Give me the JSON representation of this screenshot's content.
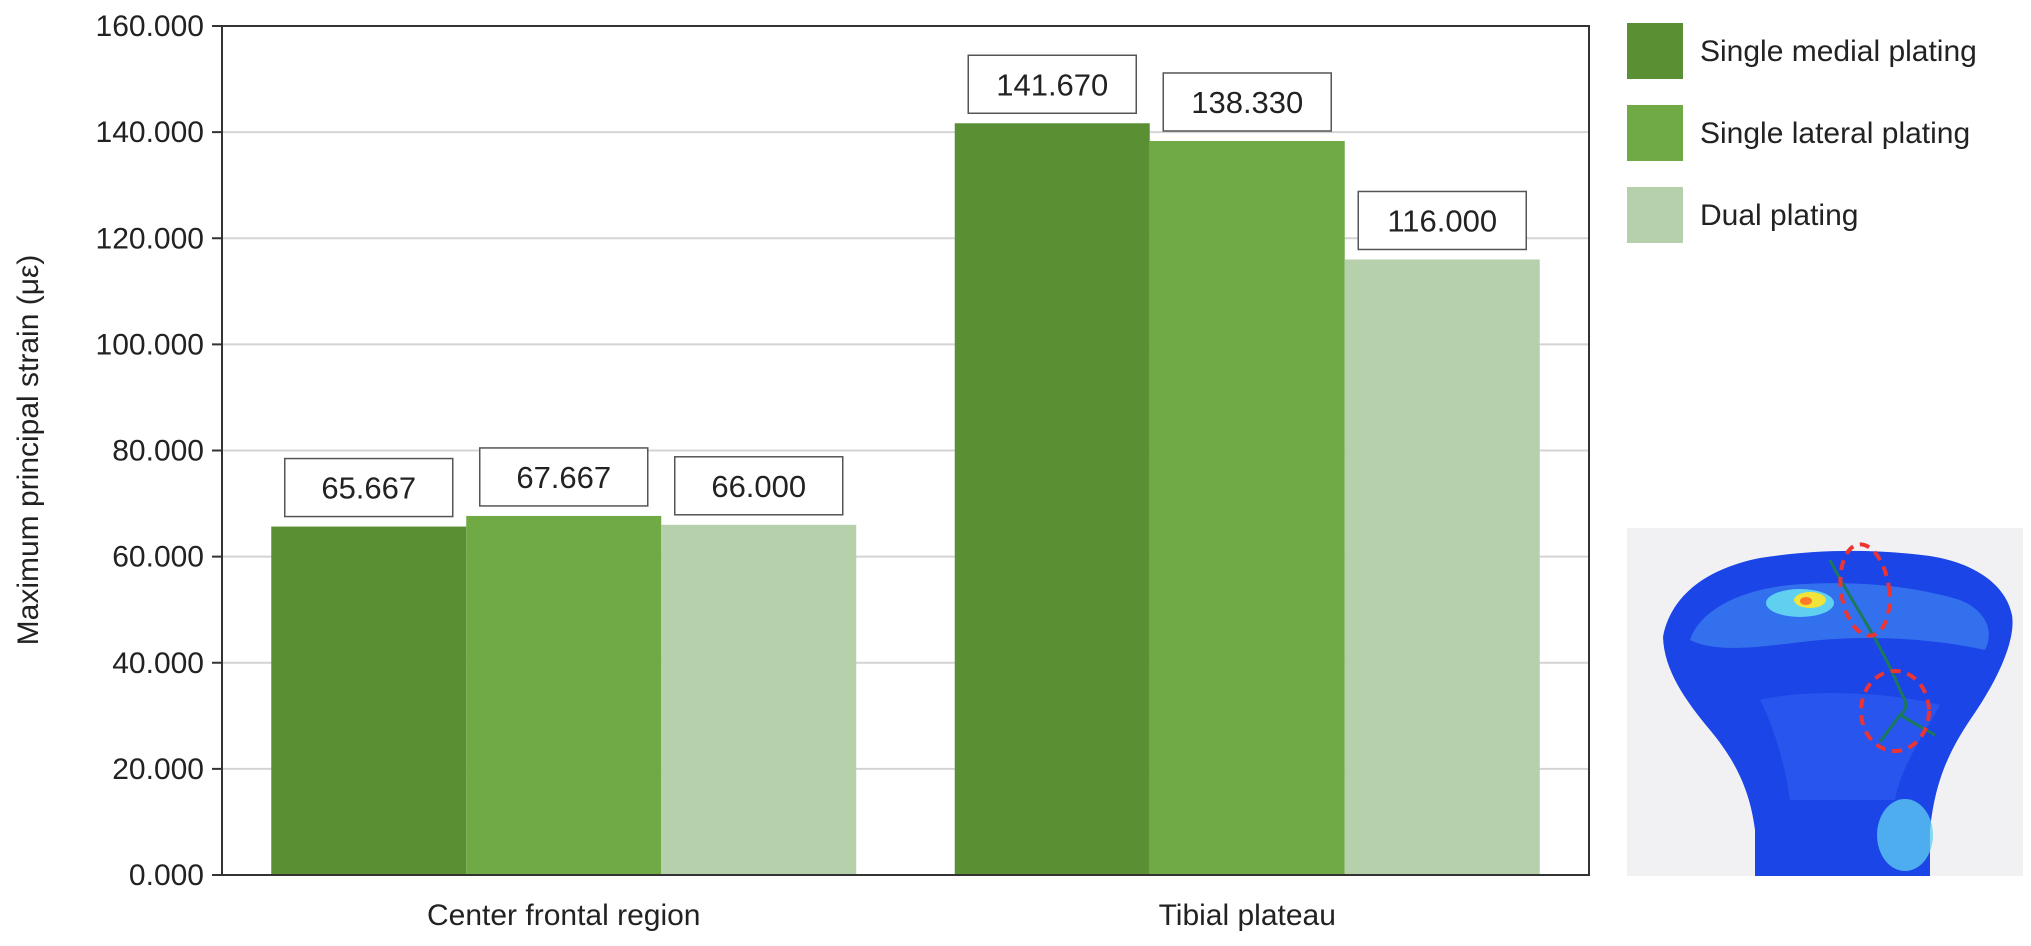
{
  "chart_data": {
    "type": "bar",
    "categories": [
      "Center frontal region",
      "Tibial plateau"
    ],
    "series": [
      {
        "name": "Single medial plating",
        "values": [
          65.667,
          141.67
        ],
        "labels": [
          "65.667",
          "141.670"
        ],
        "color": "#5a8f34"
      },
      {
        "name": "Single lateral plating",
        "values": [
          67.667,
          138.33
        ],
        "labels": [
          "67.667",
          "138.330"
        ],
        "color": "#70aa44"
      },
      {
        "name": "Dual plating",
        "values": [
          66.0,
          116.0
        ],
        "labels": [
          "66.000",
          "116.000"
        ],
        "color": "#b6d0ab"
      }
    ],
    "ylabel": "Maximum principal strain (με)",
    "xlabel": "",
    "ylim": [
      0,
      160
    ],
    "yticks": [
      "0.000",
      "20.000",
      "40.000",
      "60.000",
      "80.000",
      "100.000",
      "120.000",
      "140.000",
      "160.000"
    ],
    "grid": true,
    "legend_position": "top-right",
    "inset_image": "tibia-finite-element-strain-map"
  }
}
